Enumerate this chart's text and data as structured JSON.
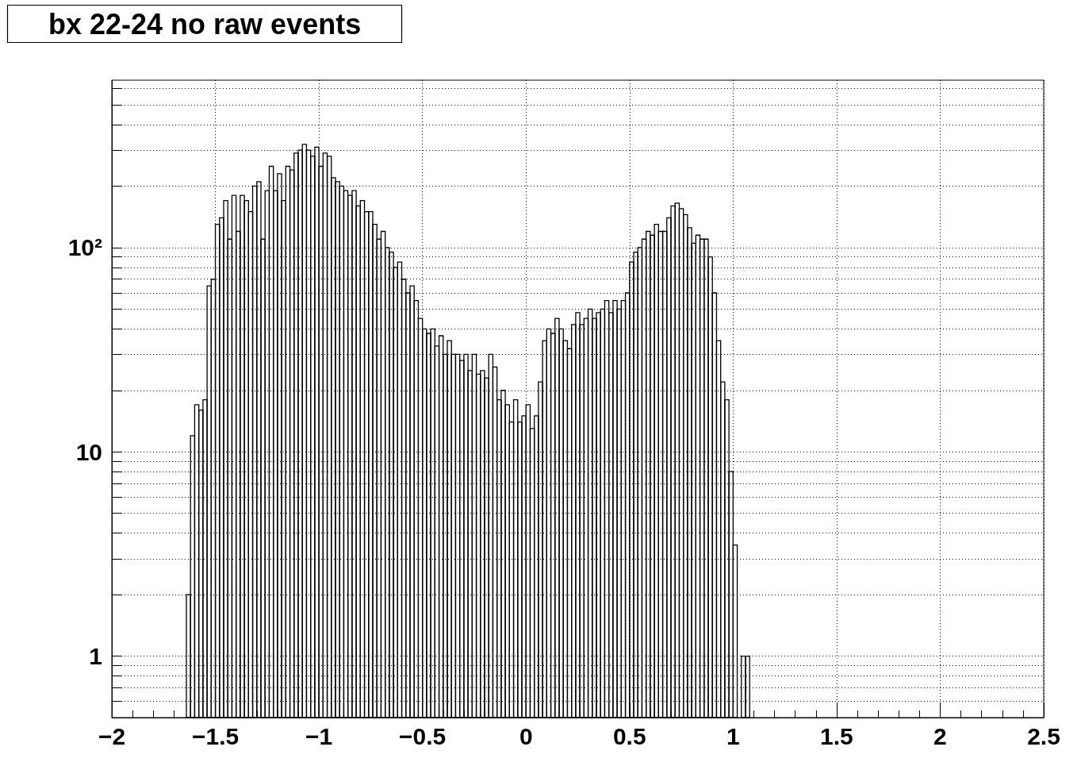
{
  "chart_data": {
    "type": "histogram",
    "title": "bx 22-24 no raw events",
    "color": "#000000",
    "bins": [
      -1.64,
      -1.62,
      -1.6,
      -1.58,
      -1.56,
      -1.54,
      -1.52,
      -1.5,
      -1.48,
      -1.46,
      -1.44,
      -1.42,
      -1.4,
      -1.38,
      -1.36,
      -1.34,
      -1.32,
      -1.3,
      -1.28,
      -1.26,
      -1.24,
      -1.22,
      -1.2,
      -1.18,
      -1.16,
      -1.14,
      -1.12,
      -1.1,
      -1.08,
      -1.06,
      -1.04,
      -1.02,
      -1,
      -0.98,
      -0.96,
      -0.94,
      -0.92,
      -0.9,
      -0.88,
      -0.86,
      -0.84,
      -0.82,
      -0.8,
      -0.78,
      -0.76,
      -0.74,
      -0.72,
      -0.7,
      -0.68,
      -0.66,
      -0.64,
      -0.62,
      -0.6,
      -0.58,
      -0.56,
      -0.54,
      -0.52,
      -0.5,
      -0.48,
      -0.46,
      -0.44,
      -0.42,
      -0.4,
      -0.38,
      -0.36,
      -0.34,
      -0.32,
      -0.3,
      -0.28,
      -0.26,
      -0.24,
      -0.22,
      -0.2,
      -0.18,
      -0.16,
      -0.14,
      -0.12,
      -0.1,
      -0.08,
      -0.06,
      -0.04,
      -0.02,
      0,
      0.02,
      0.04,
      0.06,
      0.08,
      0.1,
      0.12,
      0.14,
      0.16,
      0.18,
      0.2,
      0.22,
      0.24,
      0.26,
      0.28,
      0.3,
      0.32,
      0.34,
      0.36,
      0.38,
      0.4,
      0.42,
      0.44,
      0.46,
      0.48,
      0.5,
      0.52,
      0.54,
      0.56,
      0.58,
      0.6,
      0.62,
      0.64,
      0.66,
      0.68,
      0.7,
      0.72,
      0.74,
      0.76,
      0.78,
      0.8,
      0.82,
      0.84,
      0.86,
      0.88,
      0.9,
      0.92,
      0.94,
      0.96,
      0.98,
      1,
      1.02,
      1.04,
      1.06,
      1.08
    ],
    "values": [
      2,
      12,
      17,
      16,
      18,
      65,
      70,
      130,
      140,
      170,
      110,
      180,
      120,
      180,
      170,
      150,
      200,
      210,
      110,
      190,
      250,
      190,
      230,
      170,
      250,
      240,
      290,
      300,
      320,
      300,
      280,
      310,
      250,
      290,
      280,
      220,
      210,
      200,
      190,
      180,
      190,
      160,
      170,
      150,
      150,
      130,
      110,
      120,
      100,
      95,
      80,
      85,
      70,
      60,
      65,
      55,
      45,
      40,
      38,
      40,
      33,
      37,
      30,
      35,
      30,
      30,
      28,
      30,
      25,
      30,
      24,
      25,
      23,
      30,
      26,
      18,
      20,
      17,
      14,
      18,
      14,
      15,
      17,
      13,
      15,
      22,
      35,
      40,
      38,
      45,
      40,
      35,
      32,
      42,
      48,
      42,
      45,
      50,
      45,
      48,
      50,
      55,
      48,
      55,
      50,
      55,
      60,
      85,
      95,
      100,
      110,
      120,
      115,
      130,
      120,
      120,
      140,
      160,
      165,
      155,
      145,
      125,
      105,
      115,
      110,
      110,
      90,
      60,
      35,
      22,
      18,
      8,
      3.5,
      null,
      1,
      1
    ],
    "xlim": [
      -2,
      2.5
    ],
    "xticks": [
      {
        "value": -2,
        "label": "−2"
      },
      {
        "value": -1.5,
        "label": "−1.5"
      },
      {
        "value": -1,
        "label": "−1"
      },
      {
        "value": -0.5,
        "label": "−0.5"
      },
      0,
      0.5,
      1,
      1.5,
      2,
      2.5,
      {
        "value": -1.9,
        "label": null
      },
      {
        "value": -1.8,
        "label": null
      },
      {
        "value": -1.7,
        "label": null
      },
      {
        "value": -1.6,
        "label": null
      },
      {
        "value": -1.4,
        "label": null
      },
      {
        "value": -1.3,
        "label": null
      },
      {
        "value": -1.2,
        "label": null
      },
      {
        "value": -1.1,
        "label": null
      },
      {
        "value": -0.9,
        "label": null
      },
      {
        "value": -0.8,
        "label": null
      },
      {
        "value": -0.7,
        "label": null
      },
      {
        "value": -0.6,
        "label": null
      },
      {
        "value": -0.4,
        "label": null
      },
      {
        "value": -0.3,
        "label": null
      },
      {
        "value": -0.2,
        "label": null
      },
      {
        "value": -0.1,
        "label": null
      },
      {
        "value": 0.1,
        "label": null
      },
      {
        "value": 0.2,
        "label": null
      },
      {
        "value": 0.3,
        "label": null
      },
      {
        "value": 0.4,
        "label": null
      },
      {
        "value": 0.6,
        "label": null
      },
      {
        "value": 0.7,
        "label": null
      },
      {
        "value": 0.8,
        "label": null
      },
      {
        "value": 0.9,
        "label": null
      },
      {
        "value": 1.1,
        "label": null
      },
      {
        "value": 1.2,
        "label": null
      },
      {
        "value": 1.3,
        "label": null
      },
      {
        "value": 1.4,
        "label": null
      },
      {
        "value": 1.6,
        "label": null
      },
      {
        "value": 1.7,
        "label": null
      },
      {
        "value": 1.8,
        "label": null
      },
      {
        "value": 1.9,
        "label": null
      },
      {
        "value": 2.1,
        "label": null
      },
      {
        "value": 2.2,
        "label": null
      },
      {
        "value": 2.3,
        "label": null
      },
      {
        "value": 2.4,
        "label": null
      }
    ],
    "ylim": [
      0.5,
      660
    ],
    "log": true,
    "yticks": [
      {
        "value": 0.6,
        "label": null
      },
      {
        "value": 0.7,
        "label": null
      },
      {
        "value": 0.8,
        "label": null
      },
      {
        "value": 0.9,
        "label": null
      },
      1,
      {
        "value": 2,
        "label": null
      },
      {
        "value": 3,
        "label": null
      },
      {
        "value": 4,
        "label": null
      },
      {
        "value": 5,
        "label": null
      },
      {
        "value": 6,
        "label": null
      },
      {
        "value": 7,
        "label": null
      },
      {
        "value": 8,
        "label": null
      },
      {
        "value": 9,
        "label": null
      },
      10,
      {
        "value": 20,
        "label": null
      },
      {
        "value": 30,
        "label": null
      },
      {
        "value": 40,
        "label": null
      },
      {
        "value": 50,
        "label": null
      },
      {
        "value": 60,
        "label": null
      },
      {
        "value": 70,
        "label": null
      },
      {
        "value": 80,
        "label": null
      },
      {
        "value": 90,
        "label": null
      },
      {
        "value": 100,
        "label": "10²"
      },
      {
        "value": 200,
        "label": null
      },
      {
        "value": 300,
        "label": null
      },
      {
        "value": 400,
        "label": null
      },
      {
        "value": 500,
        "label": null
      },
      {
        "value": 600,
        "label": null
      }
    ],
    "grid": true
  }
}
